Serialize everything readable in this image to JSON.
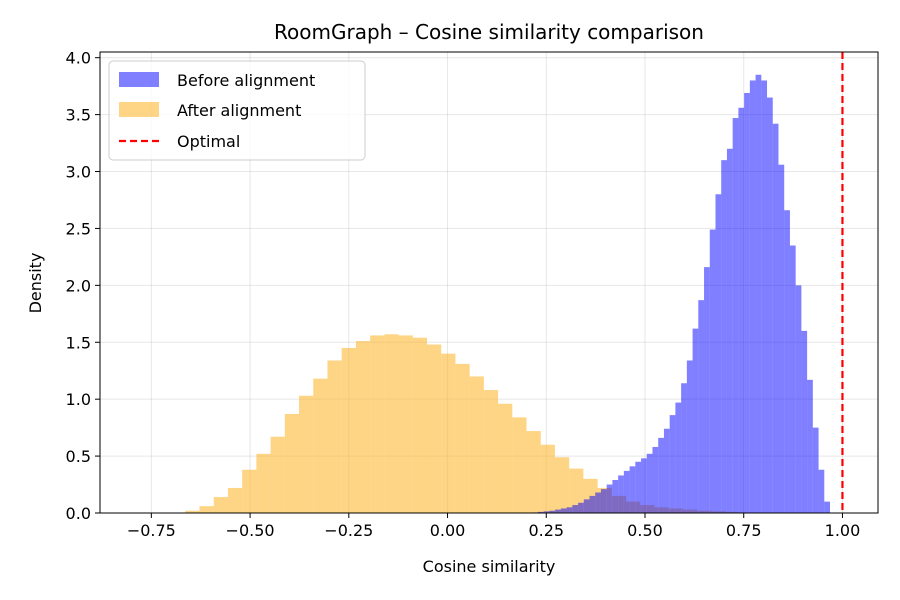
{
  "chart_data": {
    "type": "histogram",
    "title": "RoomGraph – Cosine similarity comparison",
    "xlabel": "Cosine similarity",
    "ylabel": "Density",
    "xlim": [
      -0.88,
      1.09
    ],
    "ylim": [
      0,
      4.05
    ],
    "xticks": [
      -0.75,
      -0.5,
      -0.25,
      0.0,
      0.25,
      0.5,
      0.75,
      1.0
    ],
    "xtick_labels": [
      "−0.75",
      "−0.50",
      "−0.25",
      "0.00",
      "0.25",
      "0.50",
      "0.75",
      "1.00"
    ],
    "yticks": [
      0.0,
      0.5,
      1.0,
      1.5,
      2.0,
      2.5,
      3.0,
      3.5,
      4.0
    ],
    "ytick_labels": [
      "0.0",
      "0.5",
      "1.0",
      "1.5",
      "2.0",
      "2.5",
      "3.0",
      "3.5",
      "4.0"
    ],
    "grid": true,
    "legend_position": "top-left",
    "reference_line": {
      "name": "Optimal",
      "x": 1.0,
      "color": "#ff0000",
      "style": "dashed"
    },
    "series": [
      {
        "name": "After alignment",
        "color": "#fdb833",
        "alpha": 0.6,
        "bin_start": -0.7,
        "bin_width": 0.036,
        "values": [
          0.0,
          0.02,
          0.06,
          0.14,
          0.22,
          0.38,
          0.52,
          0.67,
          0.87,
          1.03,
          1.18,
          1.34,
          1.45,
          1.51,
          1.56,
          1.57,
          1.56,
          1.54,
          1.48,
          1.4,
          1.31,
          1.2,
          1.08,
          0.96,
          0.84,
          0.72,
          0.6,
          0.49,
          0.39,
          0.3,
          0.22,
          0.15,
          0.1,
          0.07,
          0.05,
          0.04,
          0.03,
          0.02,
          0.015,
          0.01,
          0.005
        ]
      },
      {
        "name": "Before alignment",
        "color": "#0000ff",
        "alpha": 0.5,
        "bin_start": 0.2,
        "bin_width": 0.0145,
        "values": [
          0.0,
          0.005,
          0.01,
          0.015,
          0.02,
          0.03,
          0.04,
          0.05,
          0.07,
          0.09,
          0.12,
          0.15,
          0.18,
          0.21,
          0.25,
          0.29,
          0.33,
          0.37,
          0.41,
          0.45,
          0.48,
          0.52,
          0.58,
          0.66,
          0.74,
          0.86,
          0.97,
          1.14,
          1.34,
          1.62,
          1.87,
          2.16,
          2.49,
          2.8,
          3.1,
          3.2,
          3.47,
          3.56,
          3.69,
          3.8,
          3.85,
          3.8,
          3.65,
          3.42,
          3.06,
          2.66,
          2.35,
          2.0,
          1.6,
          1.17,
          0.75,
          0.38,
          0.1
        ]
      }
    ]
  }
}
